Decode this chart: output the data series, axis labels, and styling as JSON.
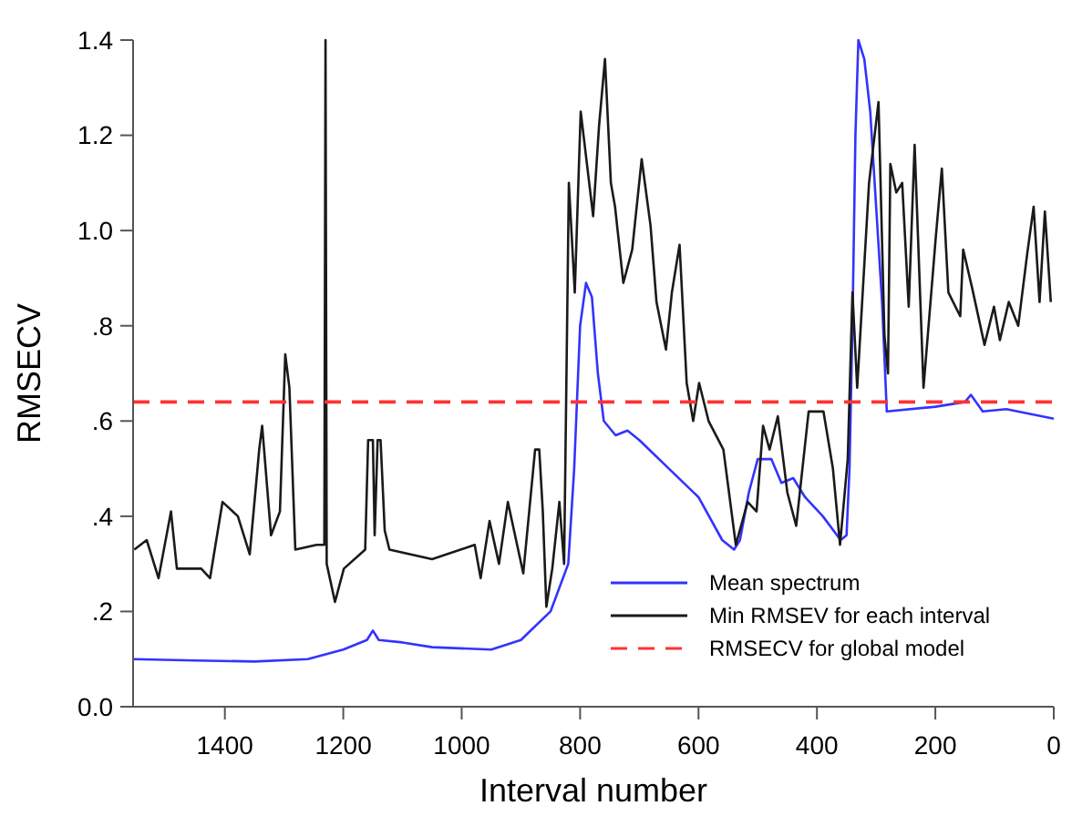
{
  "chart_data": {
    "type": "line",
    "xlabel": "Interval number",
    "ylabel": "RMSECV",
    "xlim": [
      1555,
      0
    ],
    "xticks": [
      1400,
      1200,
      1000,
      800,
      600,
      400,
      200,
      0
    ],
    "ylim": [
      0,
      1.4
    ],
    "yticks": [
      {
        "value": 0,
        "label": "0.0"
      },
      {
        "value": 0.2,
        "label": ".2"
      },
      {
        "value": 0.4,
        "label": ".4"
      },
      {
        "value": 0.6,
        "label": ".6"
      },
      {
        "value": 0.8,
        "label": ".8"
      },
      {
        "value": 1,
        "label": "1.0"
      },
      {
        "value": 1.2,
        "label": "1.2"
      },
      {
        "value": 1.4,
        "label": "1.4"
      }
    ],
    "legend": "bottom right",
    "line_style": "solid",
    "marker": "none",
    "series": [
      {
        "name": "Mean spectrum",
        "color": "#3333ff",
        "x": [
          1555,
          1450,
          1350,
          1260,
          1200,
          1160,
          1150,
          1140,
          1100,
          1050,
          950,
          900,
          850,
          820,
          810,
          800,
          790,
          780,
          770,
          760,
          740,
          720,
          700,
          650,
          600,
          560,
          540,
          530,
          515,
          500,
          477,
          460,
          440,
          420,
          390,
          360,
          350,
          345,
          340,
          335,
          330,
          320,
          310,
          300,
          290,
          282,
          200,
          150,
          140,
          120,
          80,
          40,
          0
        ],
        "values": [
          0.1,
          0.097,
          0.095,
          0.1,
          0.12,
          0.14,
          0.16,
          0.14,
          0.135,
          0.125,
          0.12,
          0.14,
          0.2,
          0.3,
          0.5,
          0.8,
          0.89,
          0.86,
          0.7,
          0.6,
          0.57,
          0.58,
          0.56,
          0.5,
          0.44,
          0.35,
          0.33,
          0.35,
          0.45,
          0.52,
          0.52,
          0.47,
          0.48,
          0.44,
          0.4,
          0.35,
          0.36,
          0.5,
          0.8,
          1.2,
          1.4,
          1.36,
          1.25,
          1.05,
          0.85,
          0.62,
          0.63,
          0.64,
          0.655,
          0.62,
          0.625,
          0.615,
          0.605
        ]
      },
      {
        "name": "Min RMSEV for each interval",
        "color": "#1a1a1a",
        "x": [
          1553,
          1532,
          1512,
          1491,
          1481,
          1440,
          1425,
          1404,
          1378,
          1358,
          1342,
          1337,
          1322,
          1307,
          1298,
          1291,
          1281,
          1245,
          1232,
          1230,
          1228,
          1214,
          1199,
          1163,
          1158,
          1150,
          1147,
          1142,
          1137,
          1130,
          1122,
          1050,
          978,
          968,
          953,
          937,
          922,
          896,
          876,
          869,
          863,
          857,
          847,
          835,
          827,
          819,
          809,
          799,
          778,
          768,
          758,
          748,
          741,
          727,
          712,
          696,
          681,
          671,
          655,
          645,
          632,
          620,
          609,
          599,
          583,
          558,
          537,
          517,
          502,
          491,
          480,
          466,
          450,
          435,
          414,
          389,
          373,
          361,
          348,
          340,
          332,
          312,
          296,
          286,
          280,
          276,
          266,
          256,
          245,
          235,
          220,
          199,
          189,
          178,
          158,
          153,
          138,
          117,
          101,
          91,
          76,
          60,
          45,
          34,
          24,
          15,
          5
        ],
        "values": [
          0.33,
          0.35,
          0.27,
          0.41,
          0.29,
          0.29,
          0.27,
          0.43,
          0.4,
          0.32,
          0.54,
          0.59,
          0.36,
          0.41,
          0.74,
          0.67,
          0.33,
          0.34,
          0.34,
          1.4,
          0.3,
          0.22,
          0.29,
          0.33,
          0.56,
          0.56,
          0.36,
          0.56,
          0.56,
          0.37,
          0.33,
          0.31,
          0.34,
          0.27,
          0.39,
          0.3,
          0.43,
          0.28,
          0.54,
          0.54,
          0.41,
          0.21,
          0.29,
          0.43,
          0.3,
          1.1,
          0.87,
          1.25,
          1.03,
          1.22,
          1.36,
          1.1,
          1.05,
          0.89,
          0.96,
          1.15,
          1.01,
          0.85,
          0.75,
          0.87,
          0.97,
          0.68,
          0.6,
          0.68,
          0.6,
          0.54,
          0.34,
          0.43,
          0.41,
          0.59,
          0.54,
          0.61,
          0.45,
          0.38,
          0.62,
          0.62,
          0.5,
          0.34,
          0.52,
          0.87,
          0.67,
          1.1,
          1.27,
          0.78,
          0.7,
          1.14,
          1.08,
          1.1,
          0.84,
          1.18,
          0.67,
          0.99,
          1.13,
          0.87,
          0.82,
          0.96,
          0.88,
          0.76,
          0.84,
          0.77,
          0.85,
          0.8,
          0.95,
          1.05,
          0.85,
          1.04,
          0.85
        ]
      }
    ],
    "ref_lines": [
      {
        "axis": "y",
        "value": 0.64,
        "label": "RMSECV for global model",
        "color": "#ff3333",
        "line_style": "dashed"
      }
    ]
  }
}
